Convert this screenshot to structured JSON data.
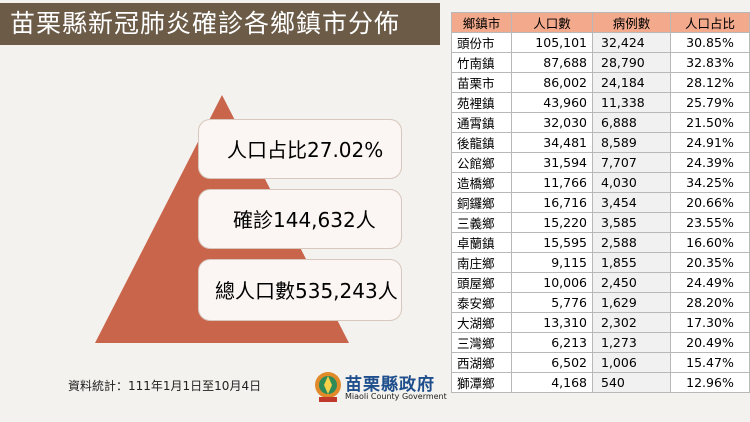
{
  "title": "苗栗縣新冠肺炎確診各鄉鎮市分佈",
  "summary": {
    "ratio": "人口占比27.02%",
    "confirmed": "確診144,632人",
    "population": "總人口數535,243人"
  },
  "source_note": "資料統計：111年1月1日至10月4日",
  "logo": {
    "name": "苗栗縣政府",
    "english": "Miaoli County Goverment",
    "icon": "miaoli-county-emblem-icon"
  },
  "colors": {
    "title_bg": "#6b5b47",
    "pyramid": "#c9654a",
    "table_header": "#f3a98c"
  },
  "table": {
    "headers": [
      "鄉鎮市",
      "人口數",
      "病例數",
      "人口占比"
    ],
    "rows": [
      {
        "town": "頭份市",
        "population": "105,101",
        "cases": "32,424",
        "ratio": "30.85%"
      },
      {
        "town": "竹南鎮",
        "population": "87,688",
        "cases": "28,790",
        "ratio": "32.83%"
      },
      {
        "town": "苗栗市",
        "population": "86,002",
        "cases": "24,184",
        "ratio": "28.12%"
      },
      {
        "town": "苑裡鎮",
        "population": "43,960",
        "cases": "11,338",
        "ratio": "25.79%"
      },
      {
        "town": "通霄鎮",
        "population": "32,030",
        "cases": "6,888",
        "ratio": "21.50%"
      },
      {
        "town": "後龍鎮",
        "population": "34,481",
        "cases": "8,589",
        "ratio": "24.91%"
      },
      {
        "town": "公館鄉",
        "population": "31,594",
        "cases": "7,707",
        "ratio": "24.39%"
      },
      {
        "town": "造橋鄉",
        "population": "11,766",
        "cases": "4,030",
        "ratio": "34.25%"
      },
      {
        "town": "銅鑼鄉",
        "population": "16,716",
        "cases": "3,454",
        "ratio": "20.66%"
      },
      {
        "town": "三義鄉",
        "population": "15,220",
        "cases": "3,585",
        "ratio": "23.55%"
      },
      {
        "town": "卓蘭鎮",
        "population": "15,595",
        "cases": "2,588",
        "ratio": "16.60%"
      },
      {
        "town": "南庄鄉",
        "population": "9,115",
        "cases": "1,855",
        "ratio": "20.35%"
      },
      {
        "town": "頭屋鄉",
        "population": "10,006",
        "cases": "2,450",
        "ratio": "24.49%"
      },
      {
        "town": "泰安鄉",
        "population": "5,776",
        "cases": "1,629",
        "ratio": "28.20%"
      },
      {
        "town": "大湖鄉",
        "population": "13,310",
        "cases": "2,302",
        "ratio": "17.30%"
      },
      {
        "town": "三灣鄉",
        "population": "6,213",
        "cases": "1,273",
        "ratio": "20.49%"
      },
      {
        "town": "西湖鄉",
        "population": "6,502",
        "cases": "1,006",
        "ratio": "15.47%"
      },
      {
        "town": "獅潭鄉",
        "population": "4,168",
        "cases": "540",
        "ratio": "12.96%"
      }
    ]
  }
}
